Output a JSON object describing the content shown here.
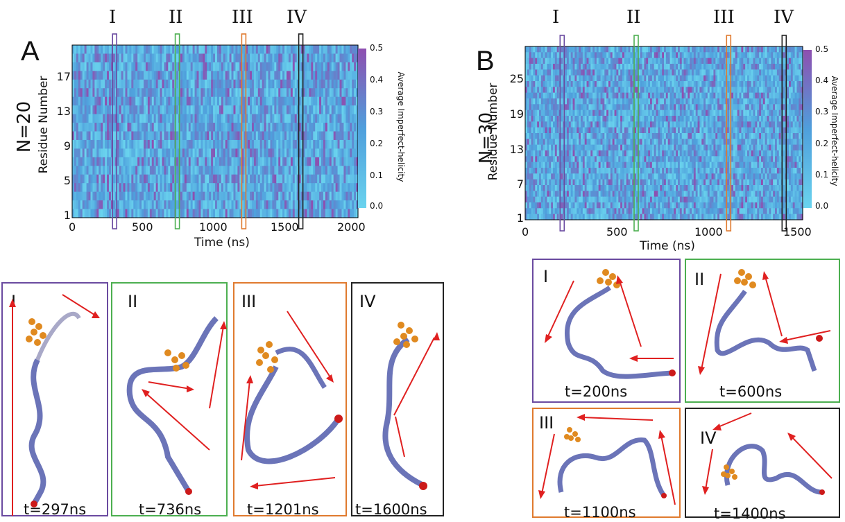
{
  "colors": {
    "I": "#6a4aa0",
    "II": "#4caf50",
    "III": "#e07a2e",
    "IV": "#222222",
    "heat_low": "#6ad3ee",
    "heat_mid": "#4f9fdc",
    "heat_high": "#8e4fb0",
    "arrow": "#e02020",
    "bead": "#e08a20",
    "ribbon": "#6b74b8"
  },
  "panelA": {
    "letter": "A",
    "n_label": "N=20",
    "ylabel": "Residue Number",
    "xlabel": "Time (ns)",
    "xticks": [
      "0",
      "500",
      "1000",
      "1500",
      "2000"
    ],
    "yticks": [
      "17",
      "13",
      "9",
      "5",
      "1"
    ],
    "markers": [
      "I",
      "II",
      "III",
      "IV"
    ],
    "colorbar": {
      "label": "Average Imperfect-helicity",
      "ticks": [
        "0.5",
        "0.4",
        "0.3",
        "0.2",
        "0.1",
        "0.0"
      ]
    },
    "snapshots": [
      {
        "roman": "I",
        "time": "t=297ns"
      },
      {
        "roman": "II",
        "time": "t=736ns"
      },
      {
        "roman": "III",
        "time": "t=1201ns"
      },
      {
        "roman": "IV",
        "time": "t=1600ns"
      }
    ]
  },
  "panelB": {
    "letter": "B",
    "n_label": "N=30",
    "ylabel": "Residue Number",
    "xlabel": "Time (ns)",
    "xticks": [
      "0",
      "500",
      "1000",
      "1500"
    ],
    "yticks": [
      "25",
      "19",
      "13",
      "7",
      "1"
    ],
    "markers": [
      "I",
      "II",
      "III",
      "IV"
    ],
    "colorbar": {
      "label": "Average Imperfect-helicity",
      "ticks": [
        "0.5",
        "0.4",
        "0.3",
        "0.2",
        "0.1",
        "0.0"
      ]
    },
    "snapshots": [
      {
        "roman": "I",
        "time": "t=200ns"
      },
      {
        "roman": "II",
        "time": "t=600ns"
      },
      {
        "roman": "III",
        "time": "t=1100ns"
      },
      {
        "roman": "IV",
        "time": "t=1400ns"
      }
    ]
  },
  "chart_data": [
    {
      "type": "heatmap",
      "x_range": [
        0,
        2000
      ],
      "y_range": [
        1,
        20
      ],
      "color_range": [
        0.0,
        0.5
      ],
      "highlighted_times": [
        297,
        736,
        1201,
        1600
      ]
    },
    {
      "type": "heatmap",
      "x_range": [
        0,
        1500
      ],
      "y_range": [
        1,
        30
      ],
      "color_range": [
        0.0,
        0.5
      ],
      "highlighted_times": [
        200,
        600,
        1100,
        1400
      ]
    }
  ]
}
